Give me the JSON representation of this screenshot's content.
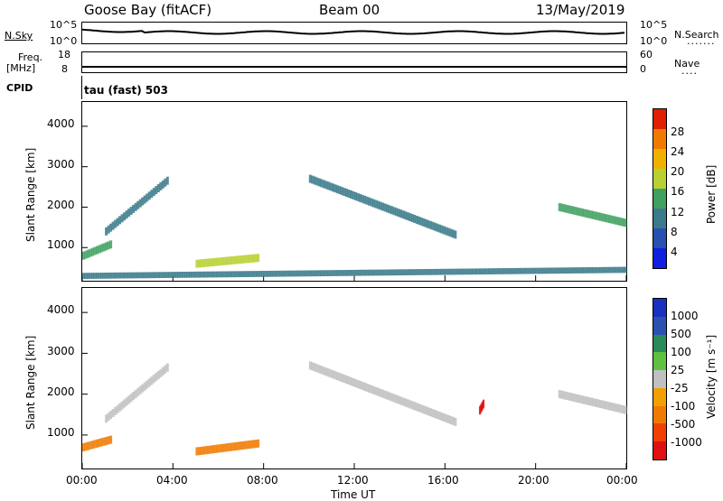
{
  "header": {
    "station": "Goose Bay (fitACF)",
    "beam": "Beam 00",
    "date": "13/May/2019"
  },
  "panels": {
    "nsky": {
      "label": "N.Sky",
      "left_ticks": [
        "10^5",
        "10^0"
      ],
      "right_label": "N.Search",
      "right_ticks": [
        "10^5",
        "10^0"
      ]
    },
    "freq": {
      "label_line1": "Freq.",
      "label_line2": "[MHz]",
      "left_ticks": [
        "18",
        "8"
      ],
      "right_label": "Nave",
      "right_ticks": [
        "60",
        "0"
      ]
    },
    "cpid": {
      "label": "CPID",
      "value": "tau (fast) 503"
    }
  },
  "colors": {
    "power": [
      "#1020e0",
      "#2850b0",
      "#3a7a8a",
      "#40a060",
      "#b8d030",
      "#f0b000",
      "#f07a00",
      "#e02000"
    ],
    "velocity": [
      "#e01010",
      "#f04000",
      "#f07a00",
      "#f0a000",
      "#c0c0c0",
      "#60c040",
      "#2a8a5a",
      "#2a50b0",
      "#1a30c0"
    ]
  },
  "chart_data": [
    {
      "type": "heatmap",
      "title": "Power",
      "xlabel": "Time UT",
      "ylabel": "Slant Range [km]",
      "x_ticks": [
        "00:00",
        "04:00",
        "08:00",
        "12:00",
        "16:00",
        "20:00",
        "00:00"
      ],
      "y_ticks": [
        "4000",
        "3000",
        "2000",
        "1000"
      ],
      "ylim": [
        180,
        4600
      ],
      "colorbar": {
        "label": "Power [dB]",
        "ticks": [
          "28",
          "24",
          "20",
          "16",
          "12",
          "8",
          "4"
        ],
        "range": [
          0,
          30
        ]
      },
      "features": [
        {
          "name": "early arc",
          "t_start": 1.0,
          "t_end": 3.8,
          "range_start": 1400,
          "range_end": 2700,
          "power": 10
        },
        {
          "name": "early band",
          "t_start": 0.0,
          "t_end": 1.3,
          "range_start": 800,
          "range_end": 1100,
          "power": 12
        },
        {
          "name": "midday patch",
          "t_start": 5.0,
          "t_end": 7.8,
          "range_start": 600,
          "range_end": 750,
          "power": 18
        },
        {
          "name": "evening arc",
          "t_start": 10.0,
          "t_end": 16.5,
          "range_start": 2700,
          "range_end": 1300,
          "power": 8
        },
        {
          "name": "late arc",
          "t_start": 21.0,
          "t_end": 24.0,
          "range_start": 2000,
          "range_end": 1600,
          "power": 14
        },
        {
          "name": "ground scatter",
          "t_start": 0.0,
          "t_end": 24.0,
          "range_start": 300,
          "range_end": 450,
          "power": 8
        }
      ]
    },
    {
      "type": "heatmap",
      "title": "Velocity",
      "xlabel": "Time UT",
      "ylabel": "Slant Range [km]",
      "x_ticks": [
        "00:00",
        "04:00",
        "08:00",
        "12:00",
        "16:00",
        "20:00",
        "00:00"
      ],
      "y_ticks": [
        "4000",
        "3000",
        "2000",
        "1000"
      ],
      "ylim": [
        180,
        4600
      ],
      "colorbar": {
        "label": "Velocity [m s⁻¹]",
        "ticks": [
          "1000",
          "500",
          "100",
          "25",
          "-25",
          "-100",
          "-500",
          "-1000"
        ],
        "range": [
          -1000,
          1000
        ]
      },
      "features": [
        {
          "name": "early arc",
          "t_start": 1.0,
          "t_end": 3.8,
          "range_start": 1400,
          "range_end": 2700,
          "velocity": 0
        },
        {
          "name": "early band",
          "t_start": 0.0,
          "t_end": 1.3,
          "range_start": 700,
          "range_end": 900,
          "velocity": -200
        },
        {
          "name": "midday patch",
          "t_start": 5.0,
          "t_end": 7.8,
          "range_start": 600,
          "range_end": 800,
          "velocity": -150
        },
        {
          "name": "evening arc",
          "t_start": 10.0,
          "t_end": 16.5,
          "range_start": 2700,
          "range_end": 1300,
          "velocity": 0
        },
        {
          "name": "red blob",
          "t_start": 17.5,
          "t_end": 17.7,
          "range_start": 1600,
          "range_end": 1800,
          "velocity": -1000
        },
        {
          "name": "late arc",
          "t_start": 21.0,
          "t_end": 24.0,
          "range_start": 2000,
          "range_end": 1600,
          "velocity": 0
        }
      ]
    }
  ]
}
